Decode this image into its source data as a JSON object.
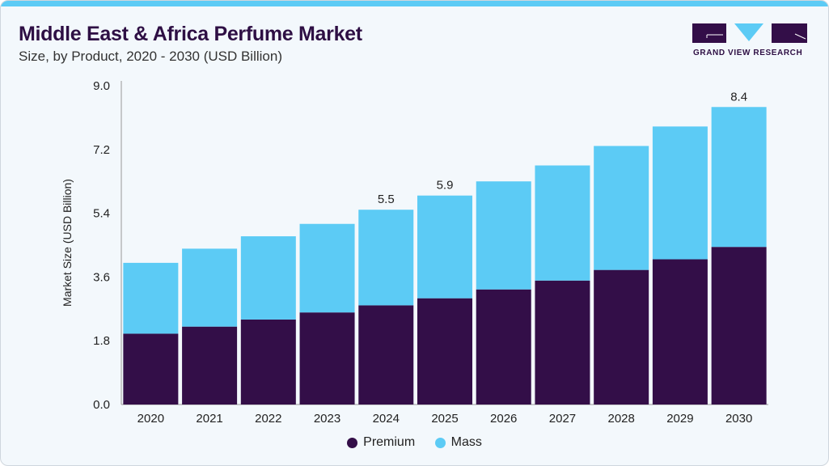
{
  "header": {
    "title": "Middle East & Africa Perfume Market",
    "subtitle": "Size, by Product, 2020 - 2030 (USD Billion)"
  },
  "logo": {
    "text": "GRAND VIEW RESEARCH"
  },
  "colors": {
    "premium": "#330e48",
    "mass": "#5ccbf5",
    "accent": "#5ccbf5"
  },
  "chart_data": {
    "type": "bar",
    "stacked": true,
    "title": "Middle East & Africa Perfume Market",
    "subtitle": "Size, by Product, 2020 - 2030 (USD Billion)",
    "xlabel": "",
    "ylabel": "Market Size (USD Billion)",
    "ylim": [
      0,
      9.0
    ],
    "yticks": [
      "0.0",
      "1.8",
      "3.6",
      "5.4",
      "7.2",
      "9.0"
    ],
    "grid": false,
    "legend_placement": "bottom",
    "categories": [
      "2020",
      "2021",
      "2022",
      "2023",
      "2024",
      "2025",
      "2026",
      "2027",
      "2028",
      "2029",
      "2030"
    ],
    "series": [
      {
        "name": "Premium",
        "values": [
          2.0,
          2.2,
          2.4,
          2.6,
          2.8,
          3.0,
          3.25,
          3.5,
          3.8,
          4.1,
          4.45
        ]
      },
      {
        "name": "Mass",
        "values": [
          2.0,
          2.2,
          2.35,
          2.5,
          2.7,
          2.9,
          3.05,
          3.25,
          3.5,
          3.75,
          3.95
        ]
      }
    ],
    "data_labels": [
      {
        "category": "2024",
        "text": "5.5"
      },
      {
        "category": "2025",
        "text": "5.9"
      },
      {
        "category": "2030",
        "text": "8.4"
      }
    ]
  }
}
